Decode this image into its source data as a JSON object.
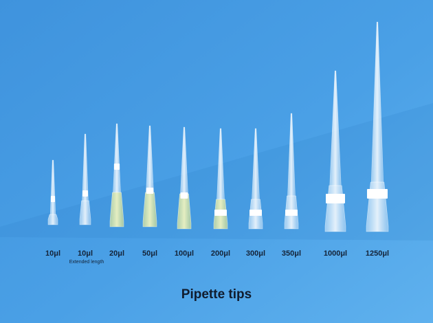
{
  "labels": [
    "10μl",
    "10μl",
    "20μl",
    "50μl",
    "100μl",
    "200μl",
    "300μl",
    "350μl",
    "1000μl",
    "1250μl"
  ],
  "note": "Extended length",
  "title": "Pipette tips"
}
